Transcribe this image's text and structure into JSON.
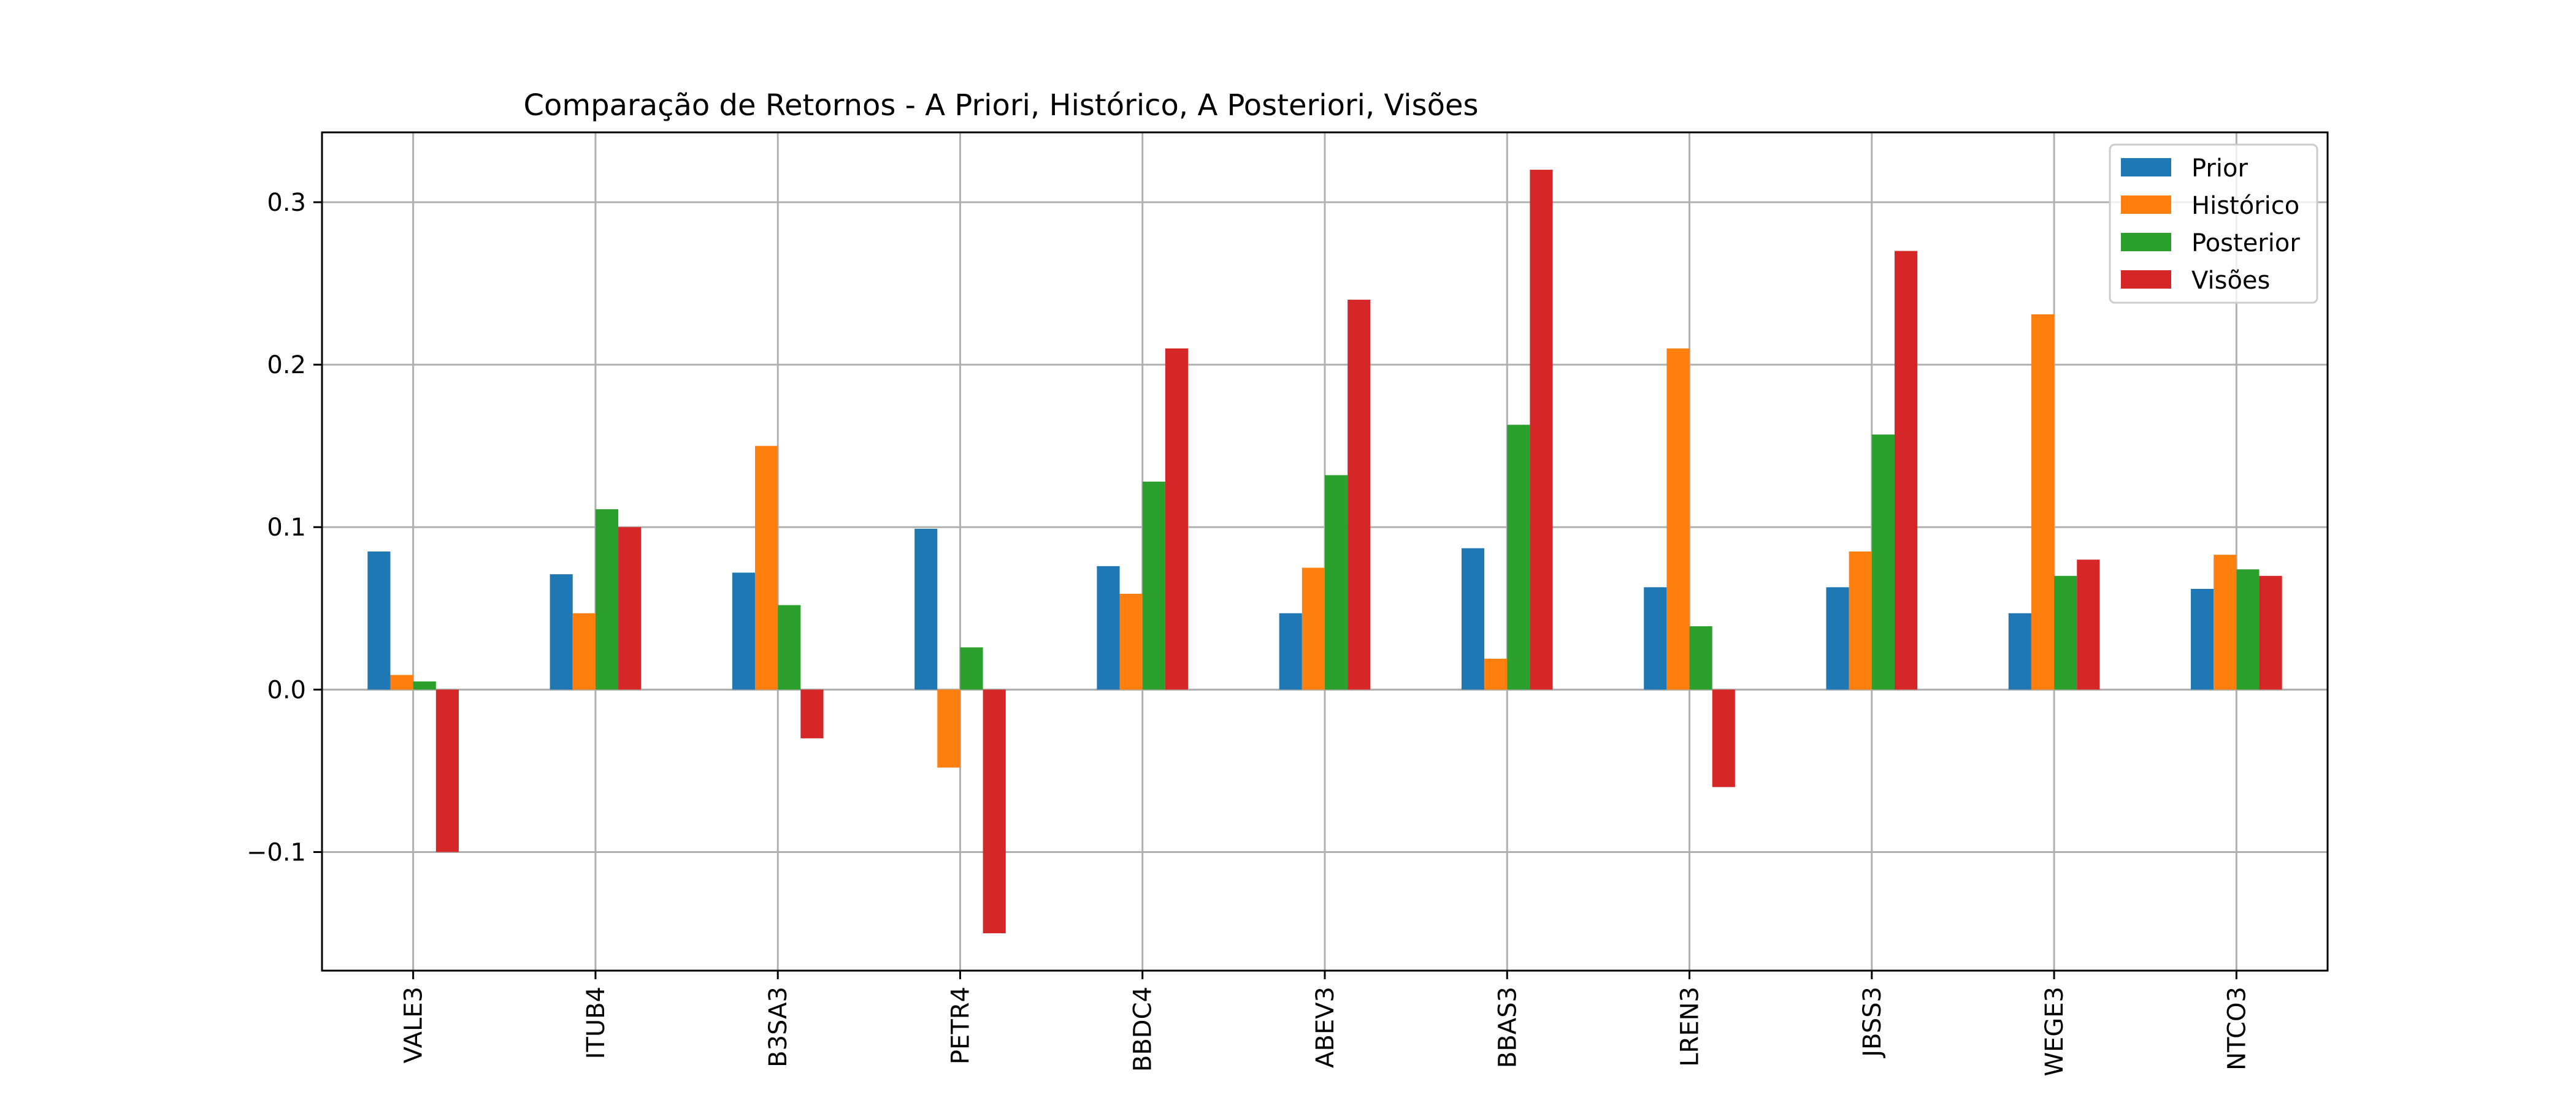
{
  "chart_data": {
    "type": "bar",
    "title": "Comparação de Retornos - A Priori, Histórico, A Posteriori, Visões",
    "xlabel": "",
    "ylabel": "",
    "categories": [
      "VALE3",
      "ITUB4",
      "B3SA3",
      "PETR4",
      "BBDC4",
      "ABEV3",
      "BBAS3",
      "LREN3",
      "JBSS3",
      "WEGE3",
      "NTCO3"
    ],
    "series": [
      {
        "name": "Prior",
        "color": "#1f77b4",
        "values": [
          0.085,
          0.071,
          0.072,
          0.099,
          0.076,
          0.047,
          0.087,
          0.063,
          0.063,
          0.047,
          0.062
        ]
      },
      {
        "name": "Histórico",
        "color": "#ff7f0e",
        "values": [
          0.009,
          0.047,
          0.15,
          -0.048,
          0.059,
          0.075,
          0.019,
          0.21,
          0.085,
          0.231,
          0.083
        ]
      },
      {
        "name": "Posterior",
        "color": "#2ca02c",
        "values": [
          0.005,
          0.111,
          0.052,
          0.026,
          0.128,
          0.132,
          0.163,
          0.039,
          0.157,
          0.07,
          0.074
        ]
      },
      {
        "name": "Visões",
        "color": "#d62728",
        "values": [
          -0.1,
          0.1,
          -0.03,
          -0.15,
          0.21,
          0.24,
          0.32,
          -0.06,
          0.27,
          0.08,
          0.07
        ]
      }
    ],
    "ylim": [
      -0.173,
      0.343
    ],
    "yticks": [
      -0.1,
      0.0,
      0.1,
      0.2,
      0.3
    ],
    "ytick_labels": [
      "−0.1",
      "0.0",
      "0.1",
      "0.2",
      "0.3"
    ],
    "grid": true,
    "legend_position": "top-right"
  }
}
